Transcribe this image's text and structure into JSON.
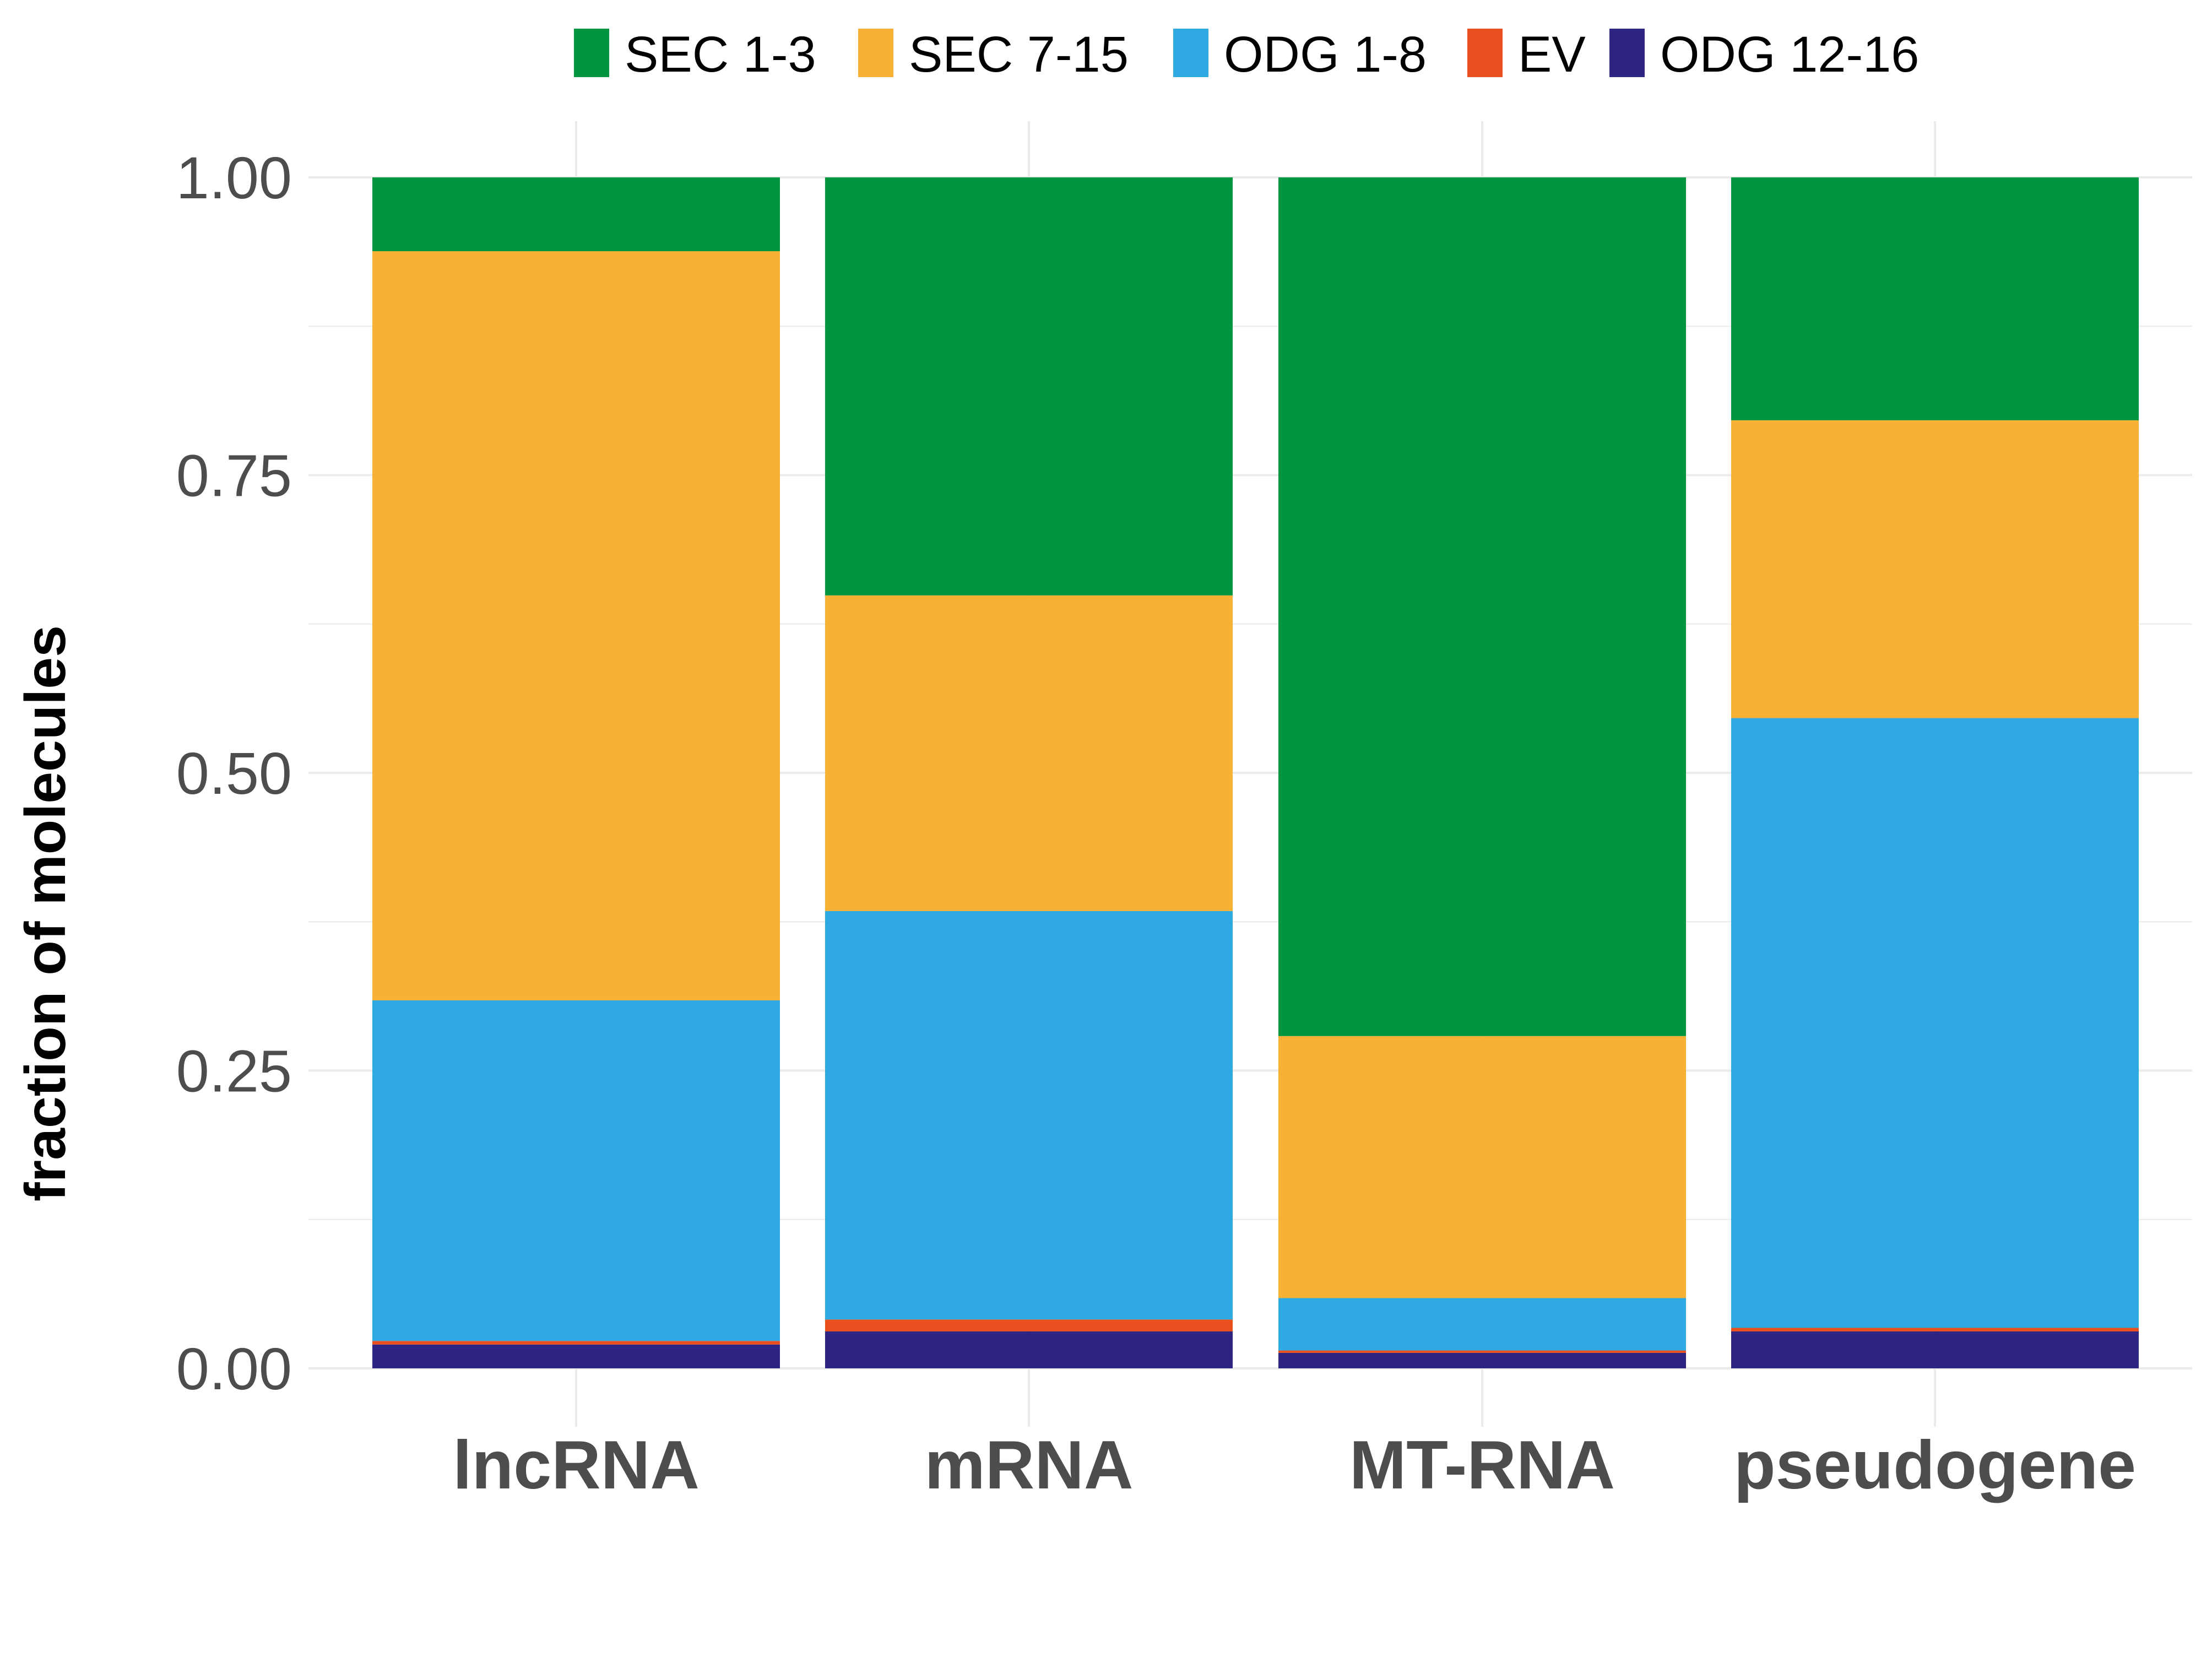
{
  "chart_data": {
    "type": "bar",
    "stacked": true,
    "categories": [
      "lncRNA",
      "mRNA",
      "MT-RNA",
      "pseudogene"
    ],
    "series": [
      {
        "name": "ODG 12-16",
        "color": "#2e2483",
        "values": [
          0.02,
          0.031,
          0.013,
          0.031
        ]
      },
      {
        "name": "EV",
        "color": "#e8501f",
        "values": [
          0.003,
          0.01,
          0.002,
          0.003
        ]
      },
      {
        "name": "ODG 1-8",
        "color": "#2ea9e1",
        "values": [
          0.286,
          0.343,
          0.044,
          0.512
        ]
      },
      {
        "name": "SEC 7-15",
        "color": "#f8b134",
        "values": [
          0.629,
          0.265,
          0.22,
          0.25
        ]
      },
      {
        "name": "SEC 1-3",
        "color": "#00963f",
        "values": [
          0.062,
          0.351,
          0.721,
          0.204
        ]
      }
    ],
    "legend_order": [
      "SEC 1-3",
      "SEC 7-15",
      "ODG 1-8",
      "EV",
      "ODG 12-16"
    ],
    "y_ticks": [
      "0.00",
      "0.25",
      "0.50",
      "0.75",
      "1.00"
    ],
    "ylim": [
      0,
      1
    ],
    "ylabel": "fraction of molecules",
    "xlabel": "",
    "legend_position": "top",
    "grid": true
  }
}
